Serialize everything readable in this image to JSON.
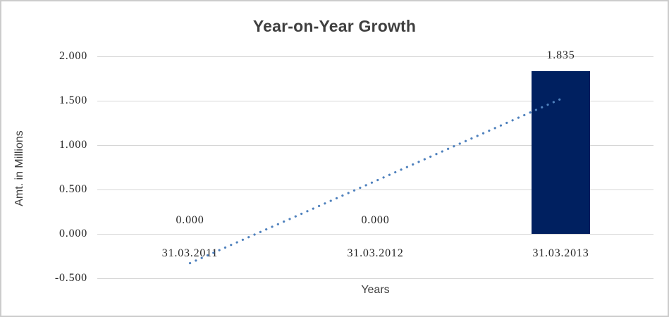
{
  "chart_data": {
    "type": "bar",
    "title": "Year-on-Year Growth",
    "categories": [
      "31.03.2011",
      "31.03.2012",
      "31.03.2013"
    ],
    "values": [
      0,
      0,
      1.835
    ],
    "data_labels": [
      "0.000",
      "0.000",
      "1.835"
    ],
    "xlabel": "Years",
    "ylabel": "Amt. in Millions",
    "ylim": [
      -0.5,
      2.0
    ],
    "ytick_step": 0.5,
    "ytick_labels": [
      "2.000",
      "1.500",
      "1.000",
      "0.500",
      "0.000",
      "-0.500"
    ],
    "grid": true,
    "legend": false,
    "bar_color": "#002060",
    "trendline": {
      "type": "linear",
      "style": "dotted",
      "color": "#4F81BD",
      "from_value": -0.33,
      "to_value": 1.52
    },
    "colors": {
      "gridline": "#D6D6D6",
      "border": "#CCCCCC",
      "title_text": "#3F3F3F",
      "label_text": "#262626",
      "background": "#FFFFFF"
    }
  }
}
